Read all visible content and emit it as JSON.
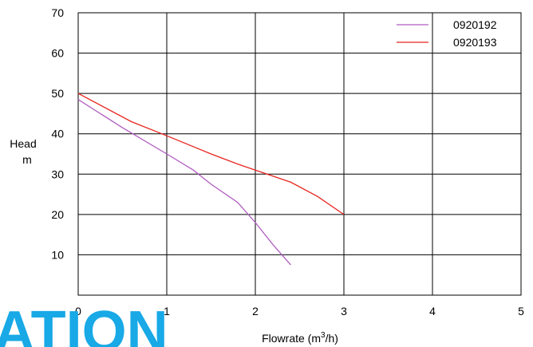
{
  "chart_data": {
    "type": "line",
    "title": "",
    "xlabel": "Flowrate (m",
    "xlabel_sup": "3",
    "xlabel_tail": "/h)",
    "ylabel_line1": "Head",
    "ylabel_line2": "m",
    "xlim": [
      0,
      5
    ],
    "ylim": [
      0,
      70
    ],
    "xticks": [
      "0",
      "1",
      "2",
      "3",
      "4",
      "5"
    ],
    "yticks": [
      "10",
      "20",
      "30",
      "40",
      "50",
      "60",
      "70"
    ],
    "grid": true,
    "legend_position": "top-right",
    "series": [
      {
        "name": "0920192",
        "color": "#b05cc0",
        "x": [
          0,
          0.5,
          1.0,
          1.3,
          1.5,
          1.8,
          2.0,
          2.2,
          2.4
        ],
        "y": [
          48.5,
          41.5,
          35.0,
          31.0,
          27.5,
          23.0,
          18.0,
          12.5,
          7.5
        ]
      },
      {
        "name": "0920193",
        "color": "#e8251f",
        "x": [
          0,
          0.6,
          1.0,
          1.5,
          1.8,
          2.0,
          2.4,
          2.7,
          3.0
        ],
        "y": [
          50.0,
          43.0,
          39.5,
          35.0,
          32.5,
          31.0,
          28.0,
          24.5,
          20.0
        ]
      }
    ]
  },
  "watermark": {
    "text": "ATION",
    "color": "#18a9e6"
  }
}
